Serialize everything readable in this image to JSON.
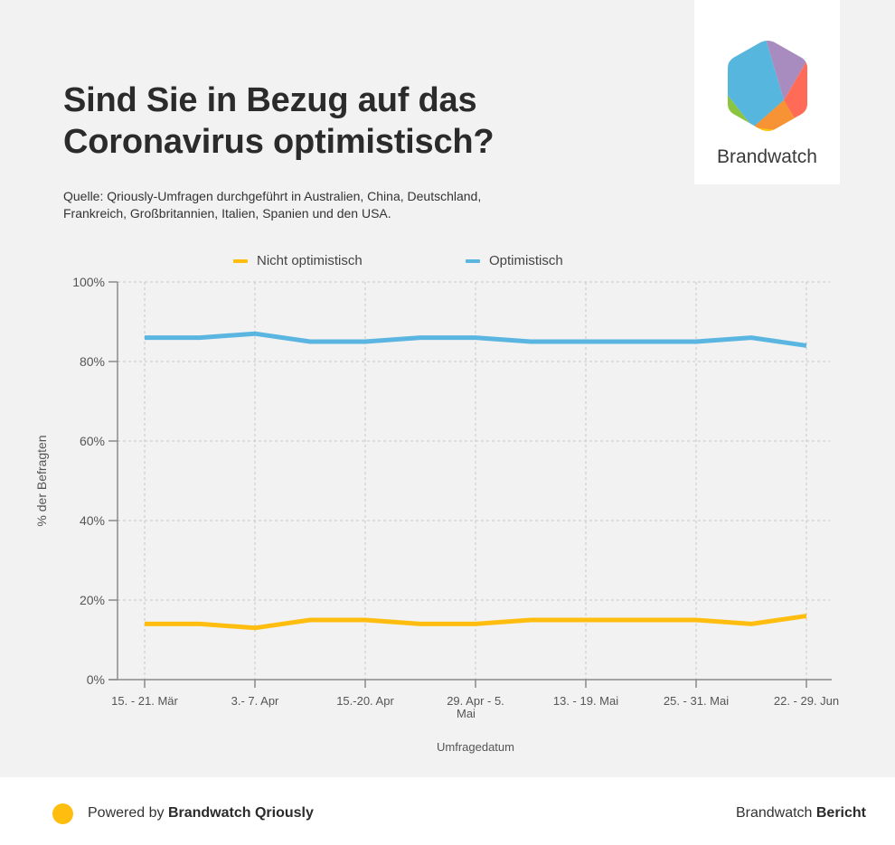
{
  "header": {
    "title_line1": "Sind Sie in Bezug auf das",
    "title_line2": "Coronavirus optimistisch?",
    "source_line1": "Quelle: Qriously-Umfragen durchgeführt in Australien, China, Deutschland,",
    "source_line2": "Frankreich, Großbritannien, Italien, Spanien und den USA."
  },
  "logo": {
    "name": "Brandwatch",
    "icon": "brandwatch-hexagon-logo",
    "colors": {
      "blue": "#57b6de",
      "purple": "#a88cc0",
      "red": "#ff6b57",
      "orange": "#f79235",
      "yellow": "#ffc30f",
      "green": "#8bc53f"
    }
  },
  "chart_data": {
    "type": "line",
    "title": "Sind Sie in Bezug auf das Coronavirus optimistisch?",
    "xlabel": "Umfragedatum",
    "ylabel": "% der Befragten",
    "ylim": [
      0,
      100
    ],
    "yticks": [
      0,
      20,
      40,
      60,
      80,
      100
    ],
    "ytick_labels": [
      "0%",
      "20%",
      "40%",
      "60%",
      "80%",
      "100%"
    ],
    "x_points": 13,
    "xtick_indices": [
      0,
      2,
      4,
      6,
      8,
      10,
      12
    ],
    "xtick_labels": [
      [
        "15. - 21. Mär"
      ],
      [
        "3.- 7. Apr"
      ],
      [
        "15.-20. Apr"
      ],
      [
        "29. Apr - 5.",
        "Mai"
      ],
      [
        "13. - 19. Mai"
      ],
      [
        "25. - 31. Mai"
      ],
      [
        "22. - 29. Jun"
      ]
    ],
    "grid": true,
    "legend_position": "top-center",
    "series": [
      {
        "name": "Nicht optimistisch",
        "color": "#ffbd10",
        "values": [
          14,
          14,
          13,
          15,
          15,
          14,
          14,
          15,
          15,
          15,
          15,
          14,
          16
        ]
      },
      {
        "name": "Optimistisch",
        "color": "#5ab6e0",
        "values": [
          86,
          86,
          87,
          85,
          85,
          86,
          86,
          85,
          85,
          85,
          85,
          86,
          84
        ]
      }
    ]
  },
  "footer": {
    "powered_prefix": "Powered by ",
    "powered_brand": "Brandwatch Qriously",
    "report_prefix": "Brandwatch ",
    "report_bold": "Bericht",
    "dot_color": "#ffbd10"
  }
}
